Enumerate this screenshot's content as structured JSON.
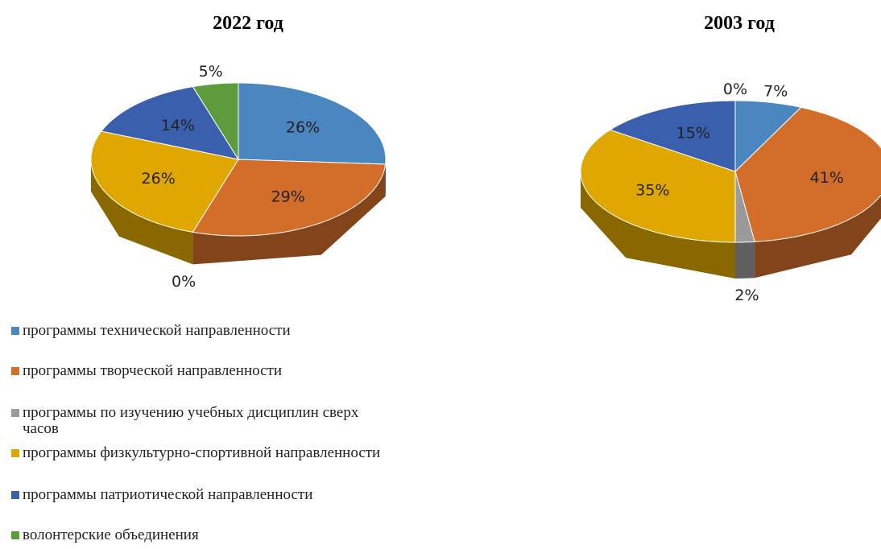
{
  "legend": {
    "labels": [
      "программы технической направленности",
      "программы творческой направленности",
      "программы по изучению учебных дисциплин сверх часов",
      "программы физкультурно-спортивной направленности",
      "программы патриотической направленности",
      "волонтерские объединения"
    ],
    "colors": [
      "#4a86c0",
      "#d36e2a",
      "#9a9a9a",
      "#dfa700",
      "#3a5fad",
      "#5e9b3c"
    ]
  },
  "chart_data": [
    {
      "type": "pie",
      "title": "2022 год",
      "values": [
        26,
        29,
        0,
        26,
        14,
        5
      ],
      "value_labels": [
        "26%",
        "29%",
        "0%",
        "26%",
        "14%",
        "5%"
      ]
    },
    {
      "type": "pie",
      "title": "2003 год",
      "values": [
        7,
        41,
        2,
        35,
        15,
        0
      ],
      "value_labels": [
        "7%",
        "41%",
        "2%",
        "35%",
        "15%",
        "0%"
      ]
    }
  ]
}
